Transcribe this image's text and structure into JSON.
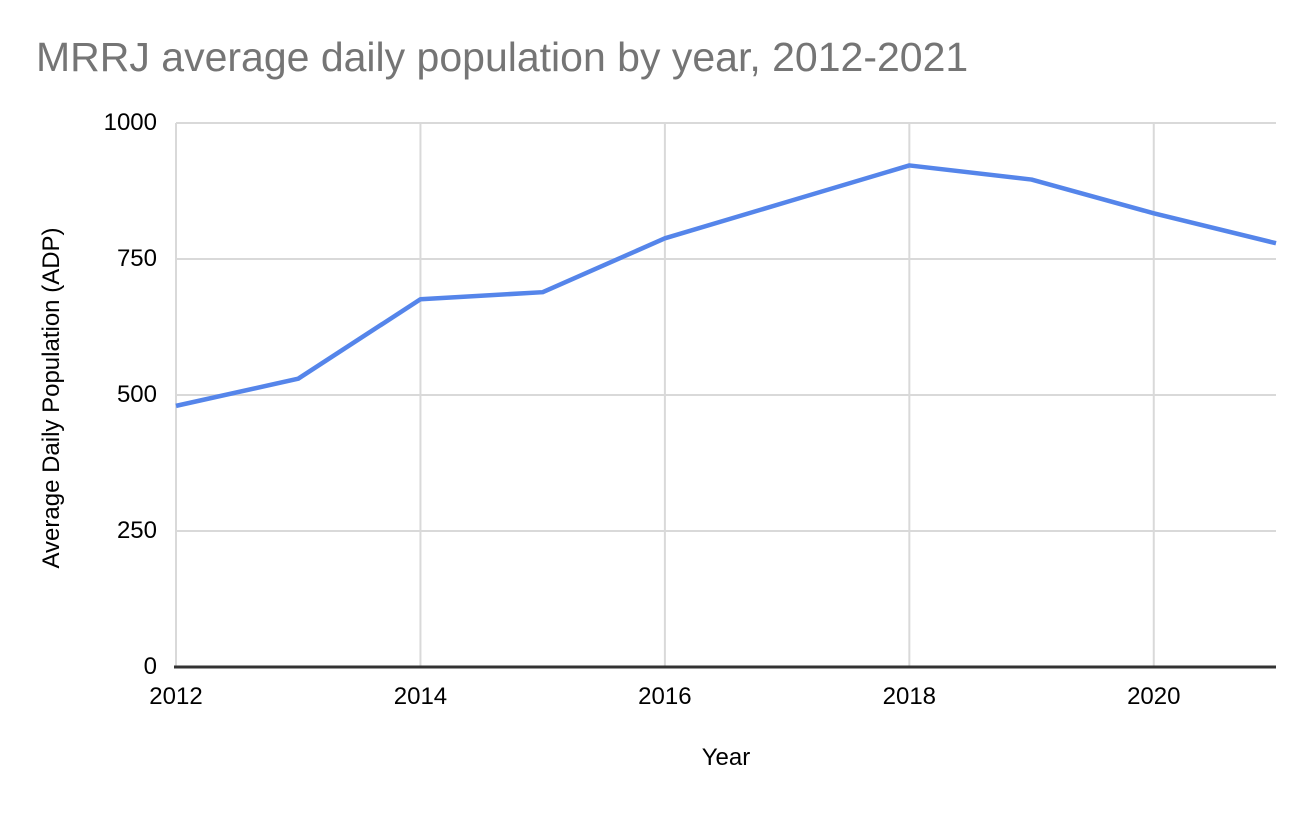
{
  "chart_data": {
    "type": "line",
    "title": "MRRJ average daily population by year, 2012-2021",
    "xlabel": "Year",
    "ylabel": "Average Daily Population (ADP)",
    "x": [
      2012,
      2013,
      2014,
      2015,
      2016,
      2017,
      2018,
      2019,
      2020,
      2021
    ],
    "series": [
      {
        "name": "Average Daily Population",
        "values": [
          480,
          530,
          676,
          689,
          788,
          855,
          922,
          896,
          834,
          779
        ]
      }
    ],
    "xlim": [
      2012,
      2021
    ],
    "ylim": [
      0,
      1000
    ],
    "yticks": [
      0,
      250,
      500,
      750,
      1000
    ],
    "xticks": [
      2012,
      2014,
      2016,
      2018,
      2020
    ],
    "grid": true,
    "legend": false,
    "colors": {
      "line": "#5585ea",
      "gridline": "#d9d9d9",
      "axis_line": "#333333",
      "tick_label": "#000000",
      "title": "#757575",
      "background": "#ffffff"
    }
  }
}
